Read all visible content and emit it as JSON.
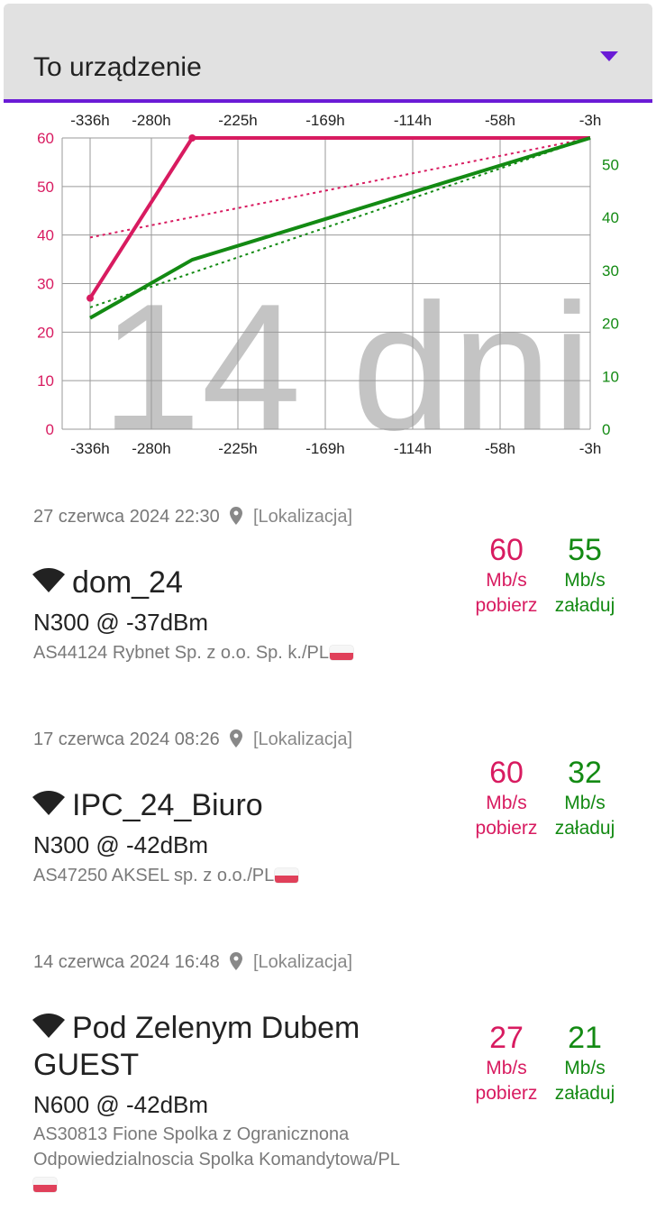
{
  "dropdown": {
    "label": "To urządzenie"
  },
  "chart_data": {
    "type": "line",
    "watermark": "14 dni",
    "x_ticks": [
      "-336h",
      "-280h",
      "-225h",
      "-169h",
      "-114h",
      "-58h",
      "-3h"
    ],
    "y_left": {
      "ticks": [
        0,
        10,
        20,
        30,
        40,
        50,
        60
      ],
      "color": "#d81b60",
      "ylim": [
        0,
        60
      ]
    },
    "y_right": {
      "ticks": [
        0,
        10,
        20,
        30,
        40,
        50
      ],
      "color": "#138a13",
      "ylim": [
        0,
        55
      ]
    },
    "xlim": [
      -336,
      -3
    ],
    "series": [
      {
        "axis": "left",
        "color": "#d81b60",
        "x": [
          -336,
          -268,
          -3
        ],
        "values": [
          27,
          60,
          60
        ]
      },
      {
        "axis": "right",
        "color": "#138a13",
        "x": [
          -336,
          -268,
          -3
        ],
        "values": [
          21,
          32,
          55
        ]
      }
    ],
    "trendlines": [
      {
        "axis": "left",
        "color": "#d81b60",
        "x": [
          -336,
          -3
        ],
        "values": [
          39.5,
          60
        ]
      },
      {
        "axis": "right",
        "color": "#138a13",
        "x": [
          -336,
          -3
        ],
        "values": [
          23,
          55
        ]
      }
    ]
  },
  "entries": [
    {
      "date": "27 czerwca 2024 22:30",
      "location": "[Lokalizacja]",
      "ssid": "dom_24",
      "signal": "N300 @ -37dBm",
      "as": "AS44124 Rybnet Sp. z o.o. Sp. k./PL",
      "download": "60",
      "upload": "55",
      "unit": "Mb/s",
      "download_label": "pobierz",
      "upload_label": "załaduj"
    },
    {
      "date": "17 czerwca 2024 08:26",
      "location": "[Lokalizacja]",
      "ssid": "IPC_24_Biuro",
      "signal": "N300 @ -42dBm",
      "as": "AS47250 AKSEL sp. z o.o./PL",
      "download": "60",
      "upload": "32",
      "unit": "Mb/s",
      "download_label": "pobierz",
      "upload_label": "załaduj"
    },
    {
      "date": "14 czerwca 2024 16:48",
      "location": "[Lokalizacja]",
      "ssid": "Pod Zelenym Dubem GUEST",
      "signal": "N600 @ -42dBm",
      "as": "AS30813 Fione Spolka z Ogranicznona Odpowiedzialnoscia Spolka Komandytowa/PL",
      "download": "27",
      "upload": "21",
      "unit": "Mb/s",
      "download_label": "pobierz",
      "upload_label": "załaduj"
    }
  ],
  "colors": {
    "accent": "#6a1bd6",
    "download": "#d81b60",
    "upload": "#138a13"
  },
  "icons": {
    "wifi": "wifi-icon",
    "pin": "location-pin-icon",
    "dropdown": "dropdown-arrow-icon",
    "flag": "poland-flag-icon"
  }
}
